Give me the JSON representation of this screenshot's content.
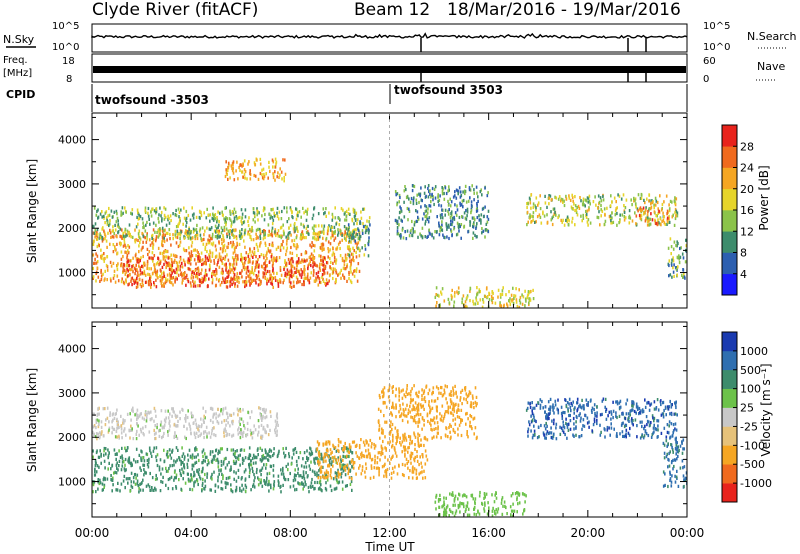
{
  "header": {
    "station": "Clyde River (fitACF)",
    "beam": "Beam 12",
    "date_range": "18/Mar/2016 - 19/Mar/2016"
  },
  "strips": {
    "nsky_label": "N.Sky",
    "nsky_ticks": [
      "10^5",
      "10^0"
    ],
    "nsearch_label": "N.Search",
    "nsearch_ticks": [
      "10^5",
      "10^0"
    ],
    "freq_label": "Freq.",
    "freq_unit": "[MHz]",
    "freq_ticks": [
      "18",
      "8"
    ],
    "nave_label": "Nave",
    "nave_ticks": [
      "60",
      "0"
    ],
    "cpid_label": "CPID",
    "cpid_segments": [
      {
        "name": "twofsound -3503",
        "start_hour": 0
      },
      {
        "name": "twofsound 3503",
        "start_hour": 12
      }
    ]
  },
  "chart_data": [
    {
      "type": "heatmap",
      "panel": "power",
      "ylabel": "Slant Range [km]",
      "ylim": [
        200,
        4600
      ],
      "yticks": [
        "1000",
        "2000",
        "3000",
        "4000"
      ],
      "colorbar_label": "Power [dB]",
      "colorbar_ticks": [
        "28",
        "24",
        "20",
        "16",
        "12",
        "8",
        "4"
      ],
      "colorbar_range": [
        0,
        32
      ],
      "colorbar_colors": [
        "#1a1aff",
        "#2c5fb0",
        "#3d8c6c",
        "#8bc34a",
        "#e6d42a",
        "#f5a623",
        "#f06a1e",
        "#e8231c"
      ],
      "regions": [
        {
          "x0": 0.0,
          "x1": 10.8,
          "y0": 800,
          "y1": 2000,
          "value": 22
        },
        {
          "x0": 1.2,
          "x1": 9.5,
          "y0": 700,
          "y1": 1400,
          "value": 27
        },
        {
          "x0": 0.0,
          "x1": 11.0,
          "y0": 1800,
          "y1": 2500,
          "value": 14
        },
        {
          "x0": 5.3,
          "x1": 7.8,
          "y0": 3100,
          "y1": 3600,
          "value": 22
        },
        {
          "x0": 10.3,
          "x1": 11.2,
          "y0": 1400,
          "y1": 2300,
          "value": 12
        },
        {
          "x0": 13.8,
          "x1": 17.8,
          "y0": 250,
          "y1": 700,
          "value": 18
        },
        {
          "x0": 17.5,
          "x1": 23.6,
          "y0": 2100,
          "y1": 2800,
          "value": 16
        },
        {
          "x0": 21.8,
          "x1": 23.2,
          "y0": 2100,
          "y1": 2500,
          "value": 24
        },
        {
          "x0": 23.2,
          "x1": 24.0,
          "y0": 900,
          "y1": 1800,
          "value": 12
        },
        {
          "x0": 12.2,
          "x1": 16.0,
          "y0": 1800,
          "y1": 3000,
          "value": 10
        }
      ]
    },
    {
      "type": "heatmap",
      "panel": "velocity",
      "ylabel": "Slant Range [km]",
      "ylim": [
        200,
        4600
      ],
      "yticks": [
        "1000",
        "2000",
        "3000",
        "4000"
      ],
      "colorbar_label": "Velocity [m s⁻¹]",
      "colorbar_ticks": [
        "1000",
        "500",
        "100",
        "25",
        "-25",
        "-100",
        "-500",
        "-1000"
      ],
      "colorbar_colors": [
        "#e8231c",
        "#f06a1e",
        "#f5a623",
        "#e6c27a",
        "#c8c8c8",
        "#6cc24a",
        "#3d8c6c",
        "#2f6fb0",
        "#1a3ab0"
      ],
      "regions": [
        {
          "x0": 0.0,
          "x1": 10.5,
          "y0": 800,
          "y1": 1800,
          "value": 150
        },
        {
          "x0": 0.0,
          "x1": 7.5,
          "y0": 2000,
          "y1": 2700,
          "value": 0
        },
        {
          "x0": 9.0,
          "x1": 13.5,
          "y0": 1100,
          "y1": 2000,
          "value": -200
        },
        {
          "x0": 11.5,
          "x1": 15.5,
          "y0": 2000,
          "y1": 3200,
          "value": -300
        },
        {
          "x0": 13.8,
          "x1": 17.5,
          "y0": 250,
          "y1": 800,
          "value": 60
        },
        {
          "x0": 17.5,
          "x1": 23.6,
          "y0": 2000,
          "y1": 2900,
          "value": 800
        },
        {
          "x0": 23.0,
          "x1": 24.0,
          "y0": 900,
          "y1": 2000,
          "value": 600
        }
      ]
    }
  ],
  "xaxis": {
    "ticks": [
      "00:00",
      "04:00",
      "08:00",
      "12:00",
      "16:00",
      "20:00",
      "00:00"
    ],
    "label": "Time UT"
  }
}
